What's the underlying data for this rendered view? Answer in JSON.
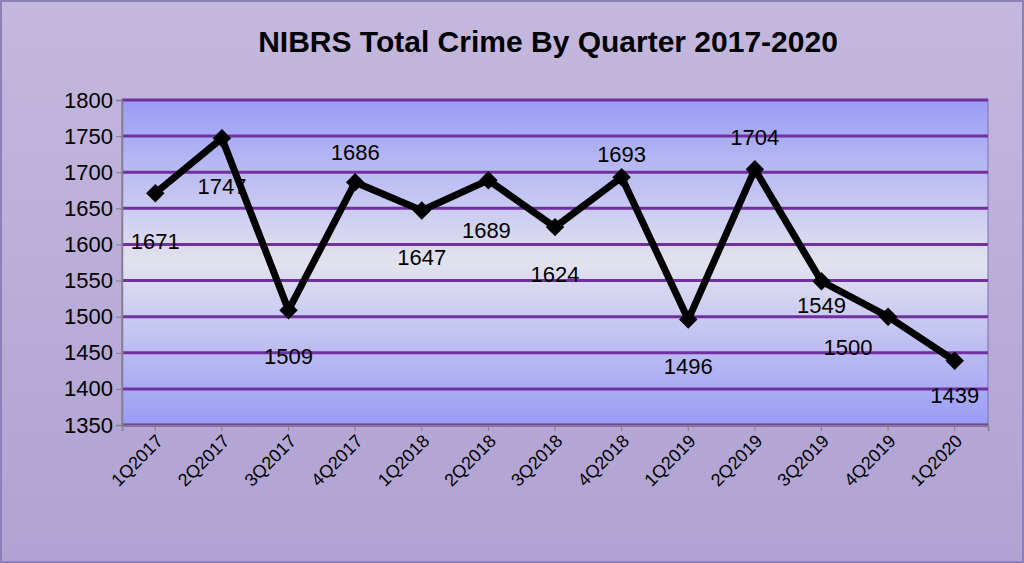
{
  "chart_data": {
    "type": "line",
    "title": "NIBRS Total Crime By Quarter 2017-2020",
    "categories": [
      "1Q2017",
      "2Q2017",
      "3Q2017",
      "4Q2017",
      "1Q2018",
      "2Q2018",
      "3Q2018",
      "4Q2018",
      "1Q2019",
      "2Q2019",
      "3Q2019",
      "4Q2019",
      "1Q2020"
    ],
    "values": [
      1671,
      1747,
      1509,
      1686,
      1647,
      1689,
      1624,
      1693,
      1496,
      1704,
      1549,
      1500,
      1439
    ],
    "color": "#000000",
    "marker": "diamond",
    "ylim": [
      1350,
      1800
    ],
    "yticks": [
      1350,
      1400,
      1450,
      1500,
      1550,
      1600,
      1650,
      1700,
      1750,
      1800
    ],
    "grid": true,
    "data_labels": true
  }
}
